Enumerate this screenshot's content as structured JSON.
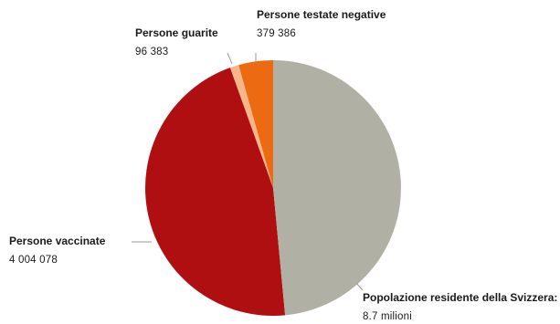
{
  "chart_data": {
    "type": "pie",
    "slices": [
      {
        "name": "Persone testate negative",
        "value_label": "379 386",
        "value": 379386,
        "color": "#ec6a12"
      },
      {
        "name": "Persone guarite",
        "value_label": "96 383",
        "value": 96383,
        "color": "#f7b58a"
      },
      {
        "name": "Persone vaccinate",
        "value_label": "4 004 078",
        "value": 4004078,
        "color": "#b00f12"
      },
      {
        "name": "Popolazione residente della Svizzera:",
        "value_label": "8.7 milioni",
        "value": 4220153,
        "color": "#b0b0a4"
      }
    ]
  }
}
